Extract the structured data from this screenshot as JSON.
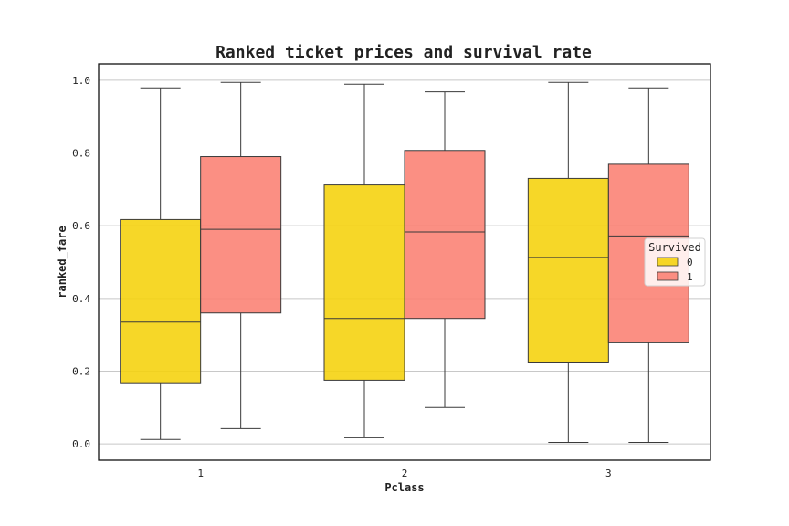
{
  "chart_data": {
    "type": "box",
    "title": "Ranked ticket prices and survival rate",
    "xlabel": "Pclass",
    "ylabel": "ranked_fare",
    "categories": [
      "1",
      "2",
      "3"
    ],
    "ylim": [
      -0.045,
      1.045
    ],
    "yticks": [
      "0.0",
      "0.2",
      "0.4",
      "0.6",
      "0.8",
      "1.0"
    ],
    "grid": "horizontal",
    "legend": {
      "title": "Survived",
      "position": "right",
      "entries": [
        "0",
        "1"
      ]
    },
    "series": [
      {
        "name": "0",
        "color": "#f5d10a",
        "boxes": [
          {
            "min": 0.012,
            "q1": 0.168,
            "median": 0.335,
            "q3": 0.617,
            "max": 0.979
          },
          {
            "min": 0.017,
            "q1": 0.175,
            "median": 0.345,
            "q3": 0.712,
            "max": 0.989
          },
          {
            "min": 0.004,
            "q1": 0.225,
            "median": 0.513,
            "q3": 0.73,
            "max": 0.994
          }
        ]
      },
      {
        "name": "1",
        "color": "#fa8072",
        "boxes": [
          {
            "min": 0.042,
            "q1": 0.36,
            "median": 0.59,
            "q3": 0.79,
            "max": 0.994
          },
          {
            "min": 0.1,
            "q1": 0.345,
            "median": 0.583,
            "q3": 0.807,
            "max": 0.968
          },
          {
            "min": 0.004,
            "q1": 0.278,
            "median": 0.572,
            "q3": 0.769,
            "max": 0.979
          }
        ]
      }
    ]
  }
}
